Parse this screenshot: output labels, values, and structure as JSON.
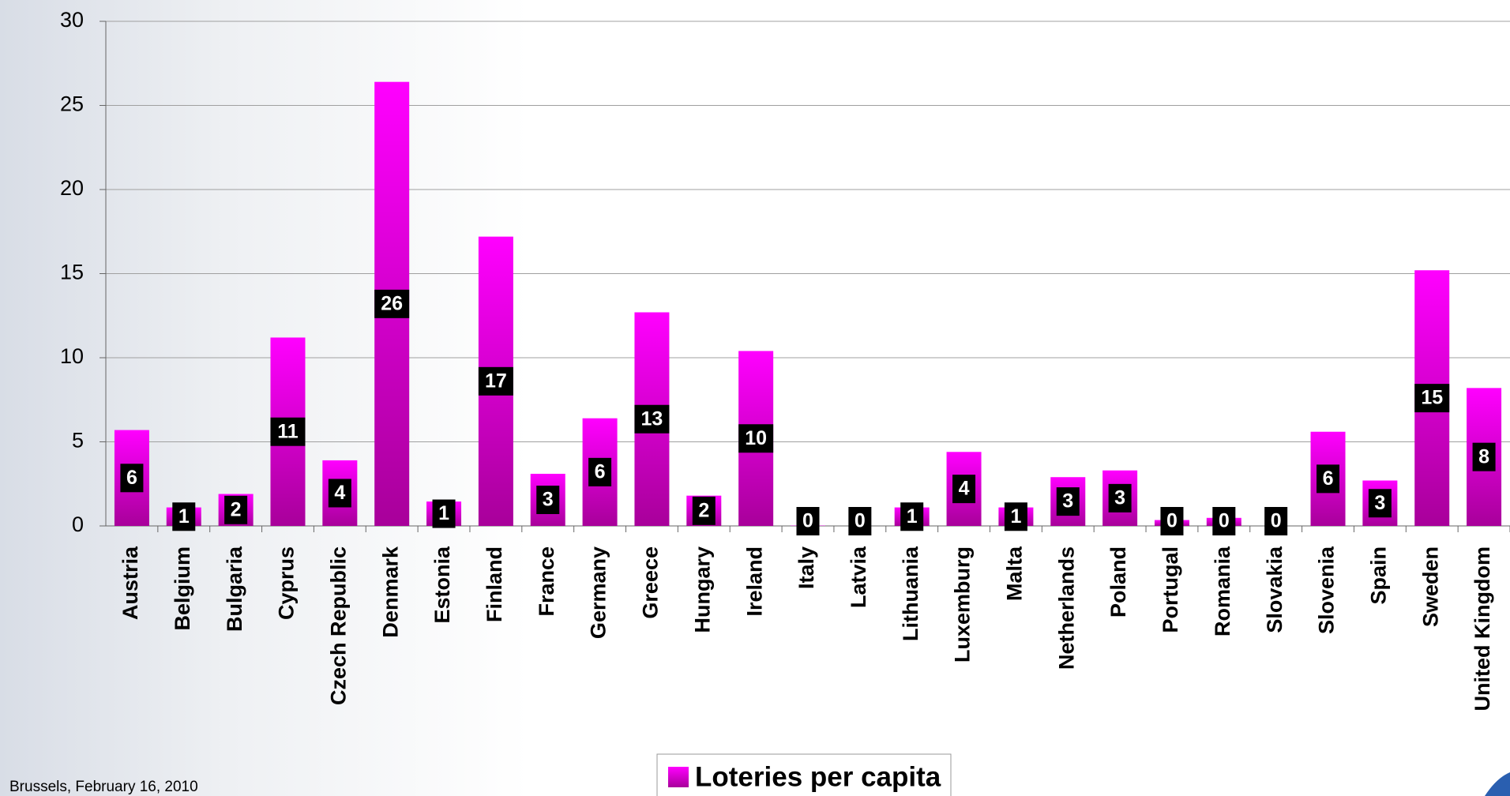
{
  "chart_data": {
    "type": "bar",
    "categories": [
      "Austria",
      "Belgium",
      "Bulgaria",
      "Cyprus",
      "Czech Republic",
      "Denmark",
      "Estonia",
      "Finland",
      "France",
      "Germany",
      "Greece",
      "Hungary",
      "Ireland",
      "Italy",
      "Latvia",
      "Lithuania",
      "Luxemburg",
      "Malta",
      "Netherlands",
      "Poland",
      "Portugal",
      "Romania",
      "Slovakia",
      "Slovenia",
      "Spain",
      "Sweden",
      "United Kingdom"
    ],
    "series": [
      {
        "name": "Loteries per capita",
        "color": "#e600e6",
        "values": [
          5.7,
          1.1,
          1.9,
          11.2,
          3.9,
          26.4,
          1.45,
          17.2,
          3.1,
          6.4,
          12.7,
          1.8,
          10.4,
          0.02,
          0,
          1.1,
          4.4,
          1.1,
          2.9,
          3.3,
          0.35,
          0.48,
          0,
          5.6,
          2.7,
          15.2,
          8.2
        ],
        "value_labels": [
          "6",
          "1",
          "2",
          "11",
          "4",
          "26",
          "1",
          "17",
          "3",
          "6",
          "13",
          "2",
          "10",
          "0",
          "0",
          "1",
          "4",
          "1",
          "3",
          "3",
          "0",
          "0",
          "0",
          "6",
          "3",
          "15",
          "8"
        ]
      }
    ],
    "ylim": [
      0,
      30
    ],
    "yticks": [
      0,
      5,
      10,
      15,
      20,
      25,
      30
    ],
    "grid": true,
    "footer": "Brussels, February 16, 2010"
  }
}
